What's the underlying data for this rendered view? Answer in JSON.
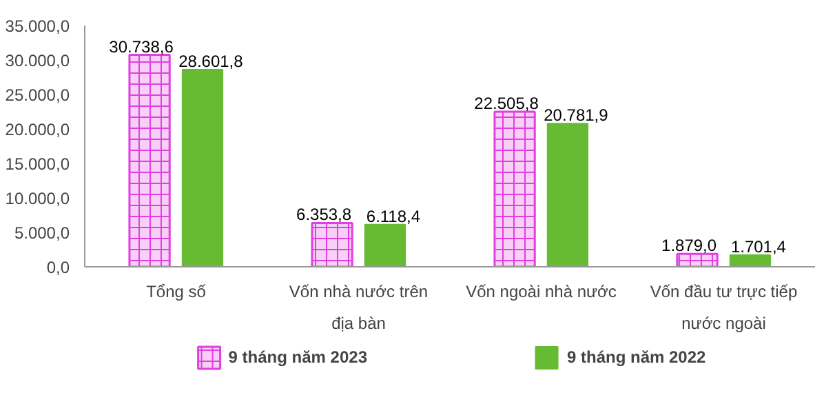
{
  "chart_data": {
    "type": "bar",
    "categories": [
      "Tổng số",
      "Vốn nhà nước trên\nđịa bàn",
      "Vốn ngoài nhà nước",
      "Vốn đầu tư trực tiếp\nnước ngoài"
    ],
    "series": [
      {
        "name": "9 tháng năm 2023",
        "color": "#e040e0",
        "values": [
          30738.6,
          6353.8,
          22505.8,
          1879.0
        ],
        "value_labels": [
          "30.738,6",
          "6.353,8",
          "22.505,8",
          "1.879,0"
        ]
      },
      {
        "name": "9 tháng năm 2022",
        "color": "#66bb33",
        "values": [
          28601.8,
          6118.4,
          20781.9,
          1701.4
        ],
        "value_labels": [
          "28.601,8",
          "6.118,4",
          "20.781,9",
          "1.701,4"
        ]
      }
    ],
    "ylim": [
      0,
      35000
    ],
    "yticks": [
      {
        "value": 0,
        "label": "0,0"
      },
      {
        "value": 5000,
        "label": "5.000,0"
      },
      {
        "value": 10000,
        "label": "10.000,0"
      },
      {
        "value": 15000,
        "label": "15.000,0"
      },
      {
        "value": 20000,
        "label": "20.000,0"
      },
      {
        "value": 25000,
        "label": "25.000,0"
      },
      {
        "value": 30000,
        "label": "30.000,0"
      },
      {
        "value": 35000,
        "label": "35.000,0"
      }
    ],
    "grid": false,
    "legend": "bottom"
  }
}
